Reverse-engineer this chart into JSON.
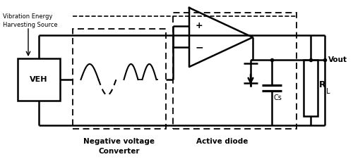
{
  "fig_width": 5.0,
  "fig_height": 2.33,
  "dpi": 100,
  "bg_color": "#ffffff",
  "lc": "#000000",
  "veh_label": "VEH",
  "vib_line1": "Vibration Energy",
  "vib_line2": "Harvesting Source",
  "nvc_line1": "Negative voltage",
  "nvc_line2": "Converter",
  "ad_label": "Active diode",
  "cs_label": "Cs",
  "rl_label": "R",
  "rl_sub": "L",
  "vout_label": "Vout"
}
